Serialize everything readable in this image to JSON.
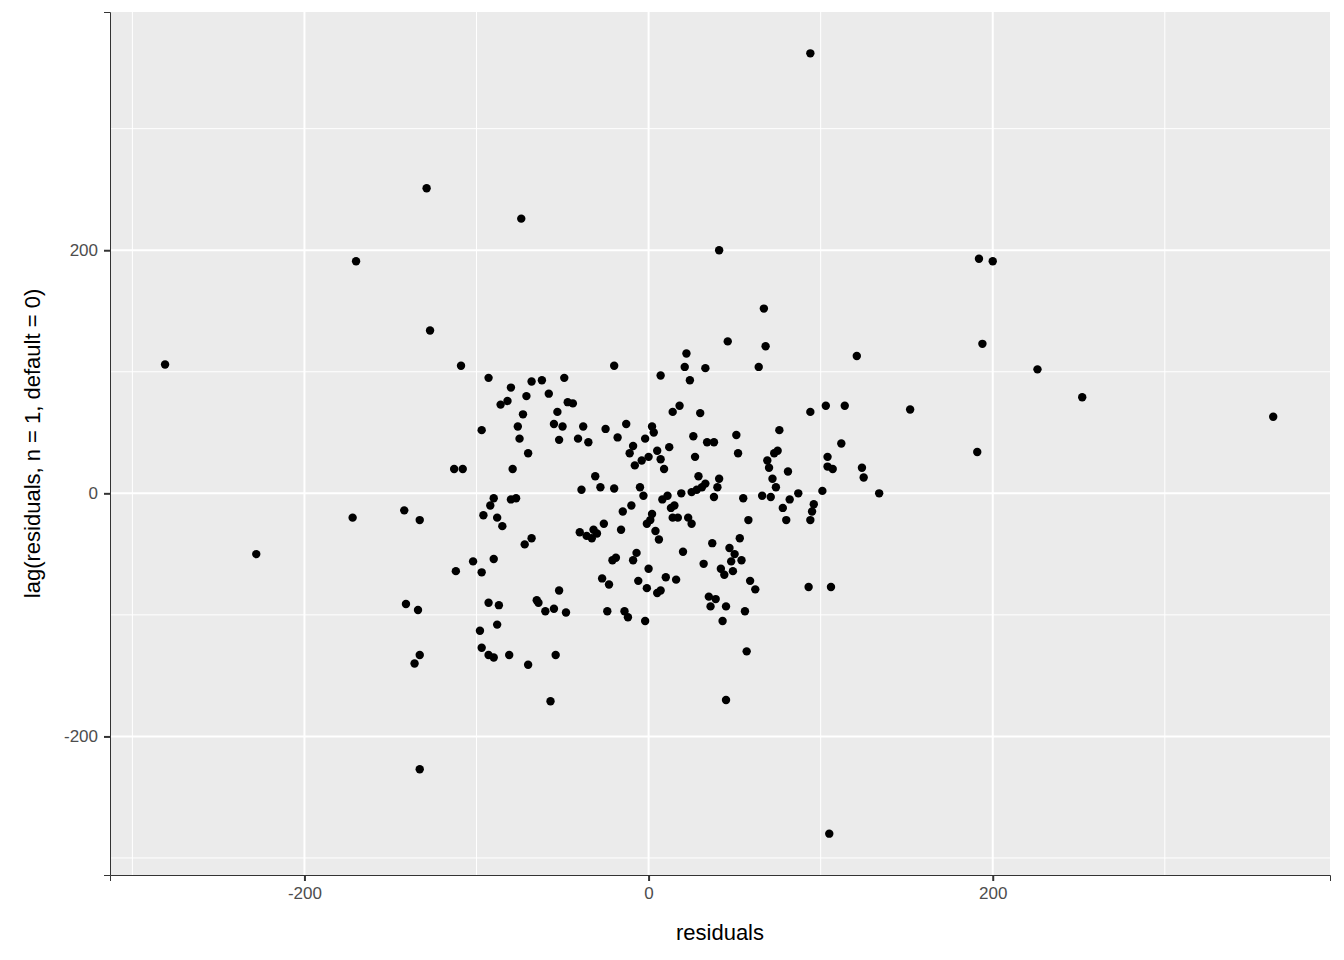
{
  "chart_data": {
    "type": "scatter",
    "xlabel": "residuals",
    "ylabel": "lag(residuals, n = 1, default = 0)",
    "color": "#000000",
    "grid": true,
    "xlim": [
      -313,
      396
    ],
    "ylim": [
      -314,
      396
    ],
    "xticks": [
      -200,
      0,
      200
    ],
    "yticks": [
      -200,
      0,
      200
    ],
    "x": [
      94,
      -129,
      -74,
      -170,
      41,
      -281,
      -127,
      192,
      200,
      194,
      226,
      252,
      363,
      191,
      152,
      134,
      121,
      67,
      68,
      -228,
      -172,
      -133,
      105,
      -57,
      45,
      -136,
      -133,
      -141,
      -134,
      -142,
      -133,
      -108,
      -109,
      -93,
      -86,
      -82,
      -80,
      -76,
      -75,
      -73,
      -71,
      -68,
      -62,
      -58,
      -55,
      -53,
      -52,
      -50,
      -49,
      -47,
      -44,
      -41,
      -97,
      -90,
      -92,
      -96,
      -88,
      -85,
      -80,
      -77,
      -72,
      -70,
      -68,
      -65,
      -64,
      -60,
      -55,
      -54,
      -52,
      -48,
      -98,
      -97,
      -93,
      -90,
      -88,
      -90,
      -97,
      -102,
      -112,
      -113,
      -79,
      -81,
      -70,
      -87,
      -93,
      -38,
      -35,
      -33,
      -31,
      -30,
      -28,
      -27,
      -25,
      -23,
      -21,
      -20,
      -19,
      -18,
      -16,
      -15,
      -14,
      -13,
      -12,
      -11,
      -10,
      -9,
      -8,
      -7,
      -6,
      -5,
      -4,
      -3,
      -2,
      -1,
      0,
      1,
      2,
      3,
      4,
      5,
      6,
      7,
      8,
      9,
      10,
      11,
      12,
      13,
      14,
      15,
      16,
      17,
      18,
      19,
      20,
      21,
      22,
      23,
      24,
      25,
      26,
      27,
      28,
      29,
      30,
      31,
      32,
      33,
      34,
      35,
      36,
      37,
      38,
      39,
      40,
      41,
      42,
      43,
      44,
      45,
      46,
      47,
      48,
      49,
      50,
      51,
      52,
      53,
      54,
      55,
      56,
      57,
      58,
      59,
      62,
      -40,
      -39,
      -36,
      -32,
      -26,
      -24,
      -9,
      -2,
      -1,
      0,
      2,
      5,
      7,
      14,
      25,
      33,
      38,
      -20,
      7,
      64,
      66,
      69,
      70,
      71,
      72,
      73,
      74,
      75,
      76,
      78,
      80,
      81,
      82,
      87,
      94,
      95,
      96,
      93,
      94,
      101,
      103,
      104,
      104,
      106,
      107,
      112,
      114,
      124,
      125
    ],
    "values": [
      362,
      251,
      226,
      191,
      200,
      106,
      134,
      193,
      191,
      123,
      102,
      79,
      63,
      34,
      69,
      0,
      113,
      152,
      121,
      -50,
      -20,
      -227,
      -280,
      -171,
      -170,
      -140,
      -133,
      -91,
      -96,
      -14,
      -22,
      20,
      105,
      95,
      73,
      76,
      87,
      55,
      45,
      65,
      80,
      92,
      93,
      82,
      57,
      67,
      44,
      55,
      95,
      75,
      74,
      45,
      52,
      -4,
      -10,
      -18,
      -20,
      -27,
      -5,
      -4,
      -42,
      33,
      -37,
      -88,
      -90,
      -97,
      -95,
      -133,
      -80,
      -98,
      -113,
      -127,
      -133,
      -135,
      -108,
      -54,
      -65,
      -56,
      -64,
      20,
      20,
      -133,
      -141,
      -92,
      -90,
      55,
      42,
      -37,
      14,
      -33,
      5,
      -70,
      53,
      -75,
      -55,
      4,
      -53,
      46,
      -30,
      -15,
      -97,
      57,
      -102,
      33,
      -10,
      39,
      23,
      -49,
      -72,
      5,
      27,
      -2,
      45,
      -78,
      30,
      -22,
      55,
      50,
      -31,
      35,
      -38,
      -80,
      -5,
      20,
      -69,
      -2,
      38,
      -12,
      67,
      -10,
      -71,
      -20,
      72,
      0,
      -48,
      104,
      115,
      -20,
      93,
      -25,
      47,
      30,
      3,
      14,
      66,
      5,
      -58,
      103,
      42,
      -85,
      -93,
      -41,
      42,
      -87,
      5,
      12,
      -62,
      -105,
      -67,
      -93,
      125,
      -45,
      -56,
      -64,
      -50,
      48,
      33,
      -37,
      -55,
      -4,
      -97,
      -130,
      -22,
      -72,
      -79,
      -32,
      3,
      -35,
      -30,
      -25,
      -97,
      -55,
      -105,
      -25,
      -62,
      -17,
      -82,
      28,
      -20,
      1,
      8,
      -3,
      105,
      97,
      104,
      -2,
      27,
      21,
      -3,
      12,
      33,
      5,
      35,
      52,
      -12,
      -22,
      18,
      -5,
      0,
      -22,
      -15,
      -9,
      -77,
      67,
      2,
      72,
      30,
      22,
      -77,
      20,
      41,
      72,
      21,
      13
    ]
  }
}
